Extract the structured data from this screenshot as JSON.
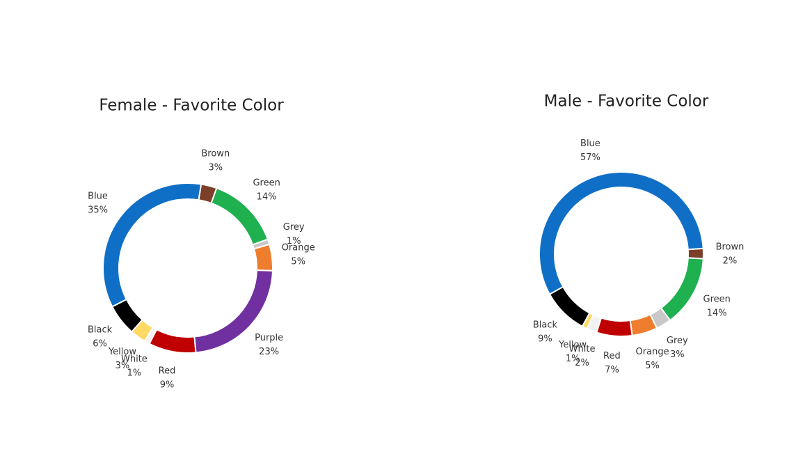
{
  "chart_data": [
    {
      "type": "donut",
      "title": "Female - Favorite Color",
      "categories": [
        "Brown",
        "Green",
        "Grey",
        "Orange",
        "Purple",
        "Red",
        "White",
        "Yellow",
        "Black",
        "Blue"
      ],
      "values": [
        3,
        14,
        1,
        5,
        23,
        9,
        1,
        3,
        6,
        35
      ],
      "value_labels": [
        "3%",
        "14%",
        "1%",
        "5%",
        "23%",
        "9%",
        "1%",
        "3%",
        "6%",
        "35%"
      ],
      "colors": [
        "#7b3f2a",
        "#1fb050",
        "#c8c8c8",
        "#ef7d2e",
        "#7030a0",
        "#c00000",
        "#f2f2f2",
        "#ffd966",
        "#000000",
        "#0f6fc6"
      ]
    },
    {
      "type": "donut",
      "title": "Male - Favorite Color",
      "categories": [
        "Brown",
        "Green",
        "Grey",
        "Orange",
        "Red",
        "White",
        "Yellow",
        "Black",
        "Blue"
      ],
      "values": [
        2,
        14,
        3,
        5,
        7,
        2,
        1,
        9,
        57
      ],
      "value_labels": [
        "2%",
        "14%",
        "3%",
        "5%",
        "7%",
        "2%",
        "1%",
        "9%",
        "57%"
      ],
      "colors": [
        "#7b3f2a",
        "#1fb050",
        "#c8c8c8",
        "#ef7d2e",
        "#c00000",
        "#f2f2f2",
        "#ffd966",
        "#000000",
        "#0f6fc6"
      ]
    }
  ]
}
